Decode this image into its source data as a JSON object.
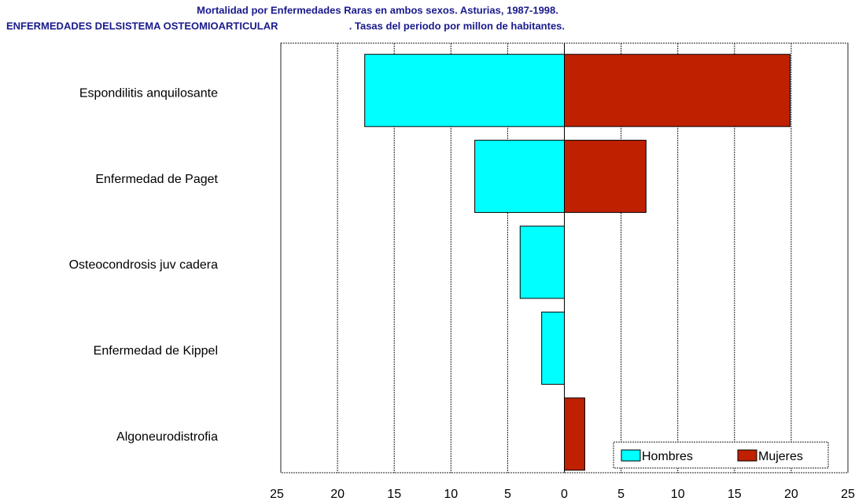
{
  "chart_data": {
    "type": "bar",
    "orientation": "horizontal",
    "title": "Mortalidad por Enfermedades Raras en ambos sexos. Asturias, 1987-1998.",
    "subtitle": "ENFERMEDADES DELSISTEMA OSTEOMIOARTICULAR                         . Tasas del periodo por millon de habitantes.",
    "categories": [
      "Espondilitis anquilosante",
      "Enfermedad de Paget",
      "Osteocondrosis juv cadera",
      "Enfermedad de Kippel",
      "Algoneurodistrofia"
    ],
    "series": [
      {
        "name": "Hombres",
        "color": "#00ffff",
        "values": [
          -17.6,
          -7.9,
          -3.9,
          -2.0,
          null
        ]
      },
      {
        "name": "Mujeres",
        "color": "#bf2000",
        "values": [
          19.9,
          7.2,
          null,
          null,
          1.8
        ]
      }
    ],
    "xlim": [
      -25,
      25
    ],
    "xticks": [
      {
        "value": -25,
        "label": "25"
      },
      {
        "value": -20,
        "label": "20"
      },
      {
        "value": -15,
        "label": "15"
      },
      {
        "value": -10,
        "label": "10"
      },
      {
        "value": -5,
        "label": "5"
      },
      0,
      5,
      10,
      15,
      20,
      25
    ],
    "grid": true,
    "legend": "lower right"
  }
}
